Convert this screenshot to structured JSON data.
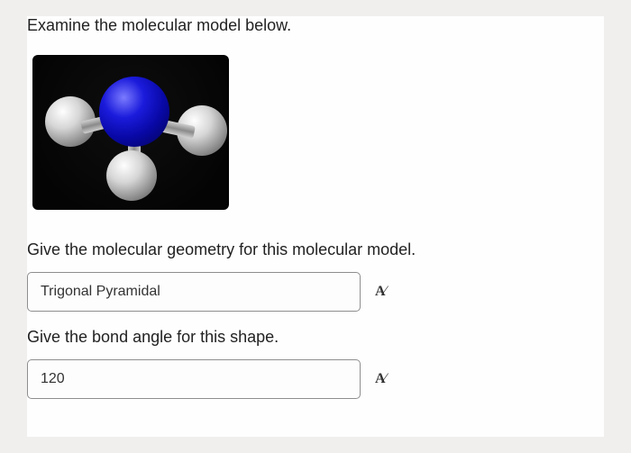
{
  "prompt": "Examine the molecular model  below.",
  "model": {
    "central_atom_color": "#1b1bdc",
    "outer_atom_color": "#cfcfcf",
    "background_color": "#050505",
    "geometry_depicted": "trigonal-pyramidal",
    "central_count": 1,
    "outer_count": 3
  },
  "q1": {
    "text": "Give the molecular geometry for this molecular model.",
    "answer": "Trigonal Pyramidal"
  },
  "q2": {
    "text": "Give the bond angle for this shape.",
    "answer": "120"
  },
  "format_icon_label": "A"
}
